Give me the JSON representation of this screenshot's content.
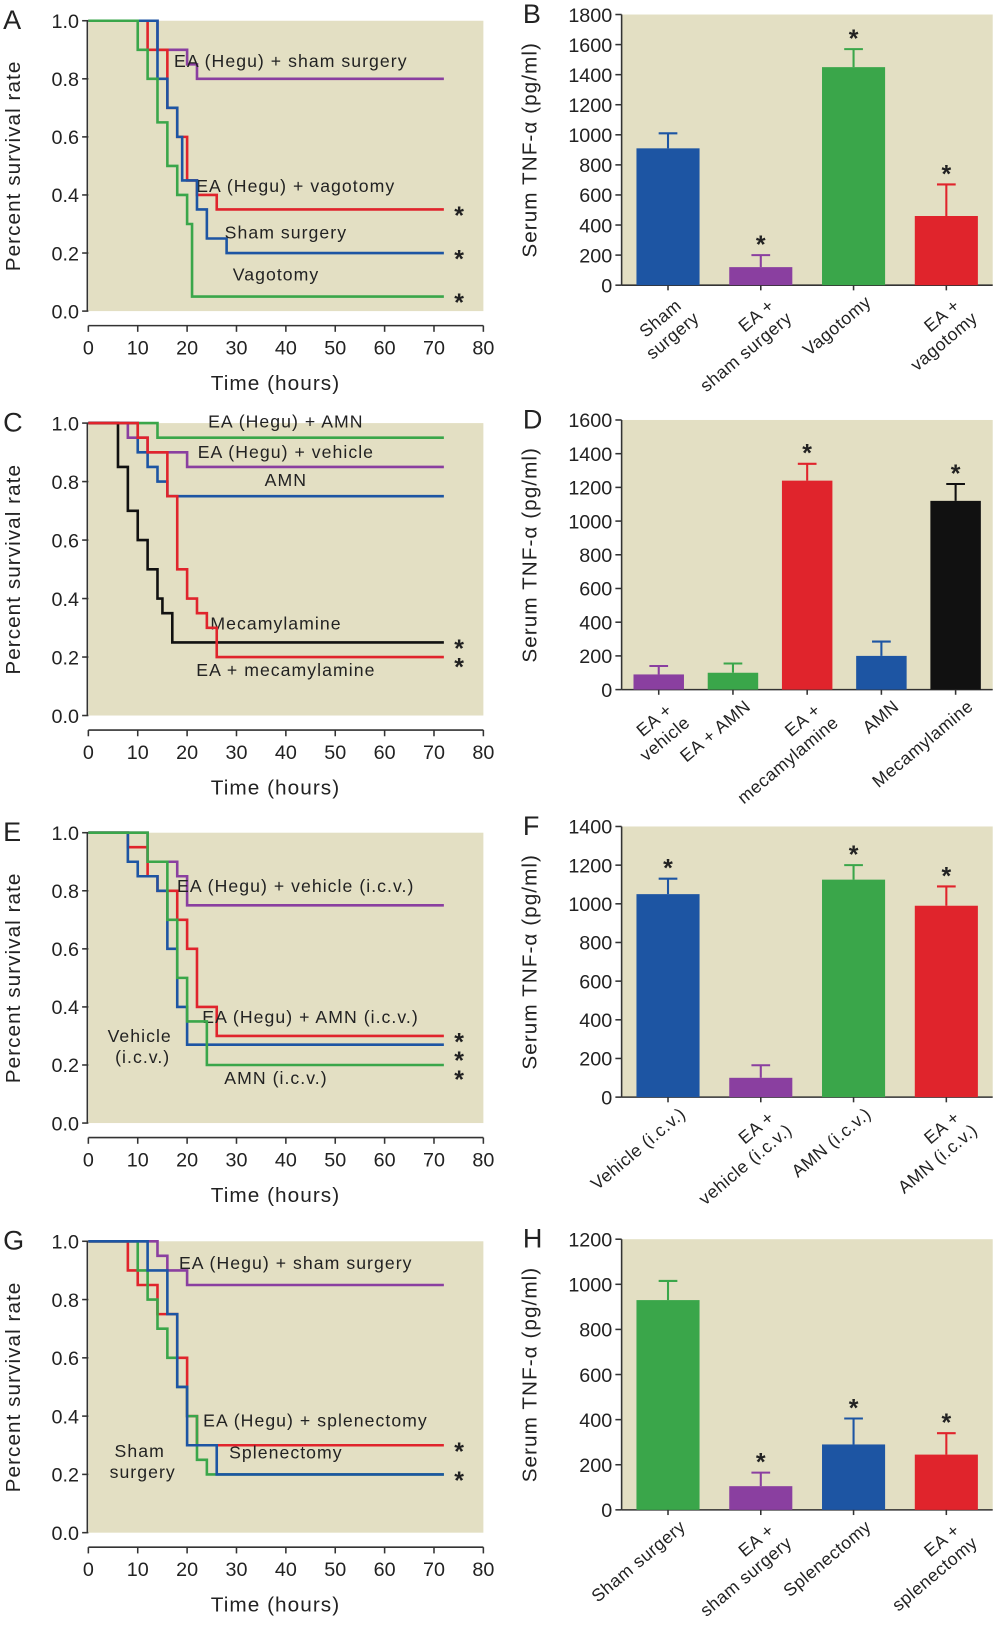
{
  "chart_data": [
    {
      "type": "survival",
      "panel": "A",
      "xlabel": "Time (hours)",
      "ylabel": "Percent survival rate",
      "background": "#e3dfc3",
      "xlim": [
        0,
        80
      ],
      "xticks": [
        0,
        10,
        20,
        30,
        40,
        50,
        60,
        70,
        80
      ],
      "ylim": [
        0,
        1
      ],
      "yticks": [
        {
          "value": 0,
          "label": "0.0"
        },
        {
          "value": 0.2,
          "label": "0.2"
        },
        {
          "value": 0.4,
          "label": "0.4"
        },
        {
          "value": 0.6,
          "label": "0.6"
        },
        {
          "value": 0.8,
          "label": "0.8"
        },
        {
          "value": 1,
          "label": "1.0"
        }
      ],
      "series": [
        {
          "name": "EA (Hegu) + sham surgery",
          "color": "#8a3fa0",
          "x": [
            0,
            14,
            20,
            22,
            72
          ],
          "values": [
            1,
            0.9,
            0.85,
            0.8,
            0.8
          ]
        },
        {
          "name": "EA (Hegu) + vagotomy",
          "color": "#e0242c",
          "x": [
            0,
            12,
            16,
            18,
            20,
            22,
            24,
            26,
            72
          ],
          "values": [
            1,
            0.9,
            0.7,
            0.6,
            0.45,
            0.4,
            0.4,
            0.35,
            0.35
          ],
          "mark": "*"
        },
        {
          "name": "Sham surgery",
          "color": "#1d55a3",
          "x": [
            0,
            14,
            16,
            18,
            19,
            22,
            24,
            28,
            72
          ],
          "values": [
            1,
            0.8,
            0.7,
            0.6,
            0.45,
            0.35,
            0.25,
            0.2,
            0.2
          ],
          "mark": "*"
        },
        {
          "name": "Vagotomy",
          "color": "#3aa64a",
          "x": [
            0,
            10,
            12,
            14,
            16,
            18,
            20,
            21,
            72
          ],
          "values": [
            1,
            0.9,
            0.8,
            0.65,
            0.5,
            0.4,
            0.3,
            0.05,
            0.05
          ],
          "mark": "*"
        }
      ]
    },
    {
      "type": "bar",
      "panel": "B",
      "ylabel": "Serum TNF-α (pg/ml)",
      "background": "#e3dfc3",
      "categories": [
        "Sham surgery",
        "EA + sham surgery",
        "Vagotomy",
        "EA + vagotomy"
      ],
      "values": [
        910,
        120,
        1450,
        460
      ],
      "errors": [
        100,
        80,
        120,
        210
      ],
      "colors": [
        "#1d55a3",
        "#8a3fa0",
        "#3aa64a",
        "#e0242c"
      ],
      "annotations": [
        null,
        "*",
        "*",
        "*"
      ],
      "ylim": [
        0,
        1800
      ],
      "yticks": [
        0,
        200,
        400,
        600,
        800,
        1000,
        1200,
        1400,
        1600,
        1800
      ]
    },
    {
      "type": "survival",
      "panel": "C",
      "xlabel": "Time (hours)",
      "ylabel": "Percent survival rate",
      "background": "#e3dfc3",
      "xlim": [
        0,
        80
      ],
      "xticks": [
        0,
        10,
        20,
        30,
        40,
        50,
        60,
        70,
        80
      ],
      "ylim": [
        0,
        1
      ],
      "yticks": [
        {
          "value": 0,
          "label": "0.0"
        },
        {
          "value": 0.2,
          "label": "0.2"
        },
        {
          "value": 0.4,
          "label": "0.4"
        },
        {
          "value": 0.6,
          "label": "0.6"
        },
        {
          "value": 0.8,
          "label": "0.8"
        },
        {
          "value": 1,
          "label": "1.0"
        }
      ],
      "series": [
        {
          "name": "EA (Hegu) + AMN",
          "color": "#3aa64a",
          "x": [
            0,
            14,
            72
          ],
          "values": [
            1,
            0.95,
            0.95
          ]
        },
        {
          "name": "EA (Hegu) + vehicle",
          "color": "#8a3fa0",
          "x": [
            0,
            8,
            12,
            20,
            72
          ],
          "values": [
            1,
            0.95,
            0.9,
            0.85,
            0.85
          ]
        },
        {
          "name": "AMN",
          "color": "#1d55a3",
          "x": [
            0,
            10,
            12,
            14,
            16,
            72
          ],
          "values": [
            1,
            0.9,
            0.85,
            0.8,
            0.75,
            0.75
          ]
        },
        {
          "name": "Mecamylamine",
          "color": "#111111",
          "x": [
            0,
            6,
            8,
            10,
            12,
            14,
            15,
            17,
            72
          ],
          "values": [
            1,
            0.85,
            0.7,
            0.6,
            0.5,
            0.4,
            0.35,
            0.25,
            0.25
          ],
          "mark": "*"
        },
        {
          "name": "EA + mecamylamine",
          "color": "#e0242c",
          "x": [
            0,
            10,
            12,
            16,
            18,
            20,
            22,
            24,
            26,
            72
          ],
          "values": [
            1,
            0.95,
            0.9,
            0.75,
            0.5,
            0.4,
            0.35,
            0.3,
            0.2,
            0.2
          ],
          "mark": "*"
        }
      ]
    },
    {
      "type": "bar",
      "panel": "D",
      "ylabel": "Serum TNF-α (pg/ml)",
      "background": "#e3dfc3",
      "categories": [
        "EA + vehicle",
        "EA + AMN",
        "EA + mecamylamine",
        "AMN",
        "Mecamylamine"
      ],
      "values": [
        90,
        100,
        1240,
        200,
        1120
      ],
      "errors": [
        50,
        55,
        100,
        85,
        100
      ],
      "colors": [
        "#8a3fa0",
        "#3aa64a",
        "#e0242c",
        "#1d55a3",
        "#111111"
      ],
      "annotations": [
        null,
        null,
        "*",
        null,
        "*"
      ],
      "ylim": [
        0,
        1600
      ],
      "yticks": [
        0,
        200,
        400,
        600,
        800,
        1000,
        1200,
        1400,
        1600
      ]
    },
    {
      "type": "survival",
      "panel": "E",
      "xlabel": "Time (hours)",
      "ylabel": "Percent survival rate",
      "background": "#e3dfc3",
      "xlim": [
        0,
        80
      ],
      "xticks": [
        0,
        10,
        20,
        30,
        40,
        50,
        60,
        70,
        80
      ],
      "ylim": [
        0,
        1
      ],
      "yticks": [
        {
          "value": 0,
          "label": "0.0"
        },
        {
          "value": 0.2,
          "label": "0.2"
        },
        {
          "value": 0.4,
          "label": "0.4"
        },
        {
          "value": 0.6,
          "label": "0.6"
        },
        {
          "value": 0.8,
          "label": "0.8"
        },
        {
          "value": 1,
          "label": "1.0"
        }
      ],
      "series": [
        {
          "name": "EA (Hegu) + vehicle (i.c.v.)",
          "color": "#8a3fa0",
          "x": [
            0,
            12,
            18,
            20,
            72
          ],
          "values": [
            1,
            0.9,
            0.85,
            0.75,
            0.75
          ]
        },
        {
          "name": "EA (Hegu) + AMN (i.c.v.)",
          "color": "#e0242c",
          "x": [
            0,
            8,
            12,
            14,
            18,
            20,
            22,
            26,
            72
          ],
          "values": [
            1,
            0.95,
            0.85,
            0.8,
            0.7,
            0.6,
            0.4,
            0.3,
            0.3
          ],
          "mark": "*"
        },
        {
          "name": "Vehicle (i.c.v.)",
          "color": "#1d55a3",
          "x": [
            0,
            8,
            10,
            14,
            16,
            18,
            20,
            72
          ],
          "values": [
            1,
            0.9,
            0.85,
            0.8,
            0.6,
            0.4,
            0.27,
            0.27
          ],
          "mark": "*"
        },
        {
          "name": "AMN (i.c.v.)",
          "color": "#3aa64a",
          "x": [
            0,
            12,
            16,
            18,
            20,
            24,
            72
          ],
          "values": [
            1,
            0.9,
            0.7,
            0.5,
            0.35,
            0.2,
            0.2
          ],
          "mark": "*"
        }
      ]
    },
    {
      "type": "bar",
      "panel": "F",
      "ylabel": "Serum TNF-α (pg/ml)",
      "background": "#e3dfc3",
      "categories": [
        "Vehicle (i.c.v.)",
        "EA + vehicle (i.c.v.)",
        "AMN (i.c.v.)",
        "EA + AMN (i.c.v.)"
      ],
      "values": [
        1050,
        100,
        1125,
        990
      ],
      "errors": [
        80,
        65,
        75,
        100
      ],
      "colors": [
        "#1d55a3",
        "#8a3fa0",
        "#3aa64a",
        "#e0242c"
      ],
      "annotations": [
        "*",
        null,
        "*",
        "*"
      ],
      "ylim": [
        0,
        1400
      ],
      "yticks": [
        0,
        200,
        400,
        600,
        800,
        1000,
        1200,
        1400
      ]
    },
    {
      "type": "survival",
      "panel": "G",
      "xlabel": "Time (hours)",
      "ylabel": "Percent survival rate",
      "background": "#e3dfc3",
      "xlim": [
        0,
        80
      ],
      "xticks": [
        0,
        10,
        20,
        30,
        40,
        50,
        60,
        70,
        80
      ],
      "ylim": [
        0,
        1
      ],
      "yticks": [
        {
          "value": 0,
          "label": "0.0"
        },
        {
          "value": 0.2,
          "label": "0.2"
        },
        {
          "value": 0.4,
          "label": "0.4"
        },
        {
          "value": 0.6,
          "label": "0.6"
        },
        {
          "value": 0.8,
          "label": "0.8"
        },
        {
          "value": 1,
          "label": "1.0"
        }
      ],
      "series": [
        {
          "name": "EA (Hegu) + sham surgery",
          "color": "#8a3fa0",
          "x": [
            0,
            14,
            16,
            20,
            72
          ],
          "values": [
            1,
            0.95,
            0.9,
            0.85,
            0.85
          ]
        },
        {
          "name": "EA (Hegu) + splenectomy",
          "color": "#e0242c",
          "x": [
            0,
            8,
            10,
            14,
            18,
            20,
            22,
            72
          ],
          "values": [
            1,
            0.9,
            0.85,
            0.75,
            0.6,
            0.4,
            0.3,
            0.3
          ],
          "mark": "*"
        },
        {
          "name": "Sham surgery",
          "color": "#3aa64a",
          "x": [
            0,
            10,
            12,
            14,
            16,
            18,
            20,
            22,
            24,
            72
          ],
          "values": [
            1,
            0.9,
            0.8,
            0.7,
            0.6,
            0.5,
            0.4,
            0.25,
            0.2,
            0.2
          ]
        },
        {
          "name": "Splenectomy",
          "color": "#1d55a3",
          "x": [
            0,
            12,
            16,
            18,
            20,
            26,
            72
          ],
          "values": [
            1,
            0.9,
            0.75,
            0.5,
            0.3,
            0.2,
            0.2
          ],
          "mark": "*"
        }
      ]
    },
    {
      "type": "bar",
      "panel": "H",
      "ylabel": "Serum TNF-α (pg/ml)",
      "background": "#e3dfc3",
      "categories": [
        "Sham surgery",
        "EA + sham surgery",
        "Splenectomy",
        "EA + splenectomy"
      ],
      "values": [
        930,
        105,
        290,
        245
      ],
      "errors": [
        85,
        60,
        115,
        95
      ],
      "colors": [
        "#3aa64a",
        "#8a3fa0",
        "#1d55a3",
        "#e0242c"
      ],
      "annotations": [
        null,
        "*",
        "*",
        "*"
      ],
      "ylim": [
        0,
        1200
      ],
      "yticks": [
        0,
        200,
        400,
        600,
        800,
        1000,
        1200
      ]
    }
  ]
}
